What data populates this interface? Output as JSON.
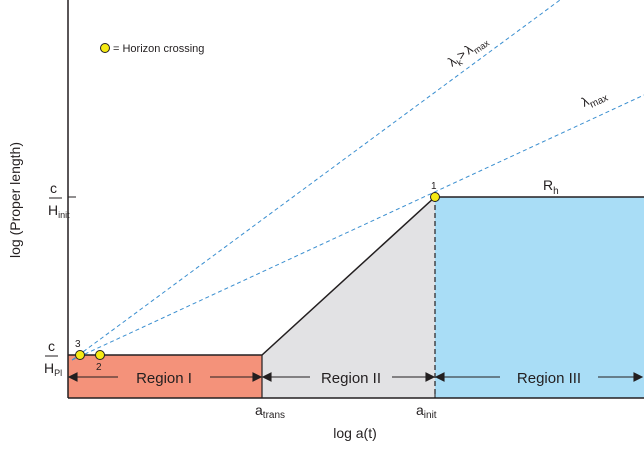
{
  "axes": {
    "xlabel": "log a(t)",
    "ylabel": "log (Proper length)"
  },
  "legend": {
    "label": "= Horizon crossing"
  },
  "y_ticks": {
    "planck": {
      "numerator": "c",
      "denominator": "H",
      "subscript": "Pl"
    },
    "init": {
      "numerator": "c",
      "denominator": "H",
      "subscript": "init"
    }
  },
  "x_ticks": {
    "trans": {
      "base": "a",
      "subscript": "trans"
    },
    "init": {
      "base": "a",
      "subscript": "init"
    }
  },
  "regions": [
    {
      "label": "Region I",
      "color": "#f4927a"
    },
    {
      "label": "Region II",
      "color": "#e2e2e4"
    },
    {
      "label": "Region III",
      "color": "#a9ddf6"
    }
  ],
  "curves": {
    "hubble": {
      "base": "R",
      "subscript": "h"
    },
    "lambda_max": {
      "base": "λ",
      "subscript": "max"
    },
    "lambda_k": {
      "base": "λ",
      "subscript": "k",
      "relation": ">",
      "base2": "λ",
      "subscript2": "max"
    },
    "line_color": "#3b8fd0"
  },
  "crossings": {
    "color": "#f5ea14",
    "labels": [
      "1",
      "2",
      "3"
    ]
  }
}
